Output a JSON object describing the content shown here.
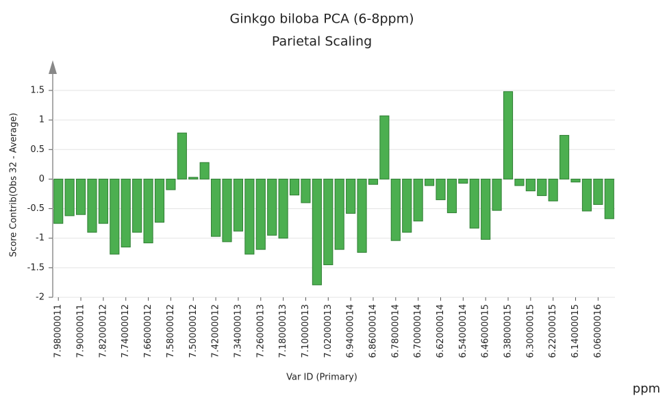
{
  "chart_data": {
    "type": "bar",
    "title": "Ginkgo biloba PCA (6-8ppm)",
    "subtitle": "Parietal Scaling",
    "x_label": "Var ID (Primary)",
    "y_label": "Score Contrib(Obs 32 - Average)",
    "corner_label": "ppm",
    "categories": [
      "7.98000011",
      null,
      "7.90000011",
      null,
      "7.82000012",
      null,
      "7.74000012",
      null,
      "7.66000012",
      null,
      "7.58000012",
      null,
      "7.50000012",
      null,
      "7.42000012",
      null,
      "7.34000013",
      null,
      "7.26000013",
      null,
      "7.18000013",
      null,
      "7.10000013",
      null,
      "7.02000013",
      null,
      "6.94000014",
      null,
      "6.86000014",
      null,
      "6.78000014",
      null,
      "6.70000014",
      null,
      "6.62000014",
      null,
      "6.54000014",
      null,
      "6.46000015",
      null,
      "6.38000015",
      null,
      "6.30000015",
      null,
      "6.22000015",
      null,
      "6.14000015",
      null,
      "6.06000016",
      null
    ],
    "values": [
      -0.75,
      -0.62,
      -0.6,
      -0.9,
      -0.75,
      -1.27,
      -1.15,
      -0.9,
      -1.08,
      -0.73,
      -0.18,
      0.78,
      0.03,
      0.28,
      -0.97,
      -1.06,
      -0.88,
      -1.27,
      -1.19,
      -0.95,
      -1.0,
      -0.27,
      -0.4,
      -1.79,
      -1.45,
      -1.19,
      -0.58,
      -1.24,
      -0.09,
      1.07,
      -1.04,
      -0.9,
      -0.71,
      -0.11,
      -0.35,
      -0.57,
      -0.07,
      -0.83,
      -1.02,
      -0.53,
      1.48,
      -0.11,
      -0.2,
      -0.28,
      -0.37,
      0.74,
      -0.05,
      -0.54,
      -0.43,
      -0.67
    ],
    "color": "#4caf50",
    "edge_color": "#2e7d32",
    "ylim": [
      -2,
      1.5
    ],
    "yticks": [
      -2,
      -1.5,
      -1,
      -0.5,
      0,
      0.5,
      1,
      1.5
    ],
    "grid": true
  }
}
